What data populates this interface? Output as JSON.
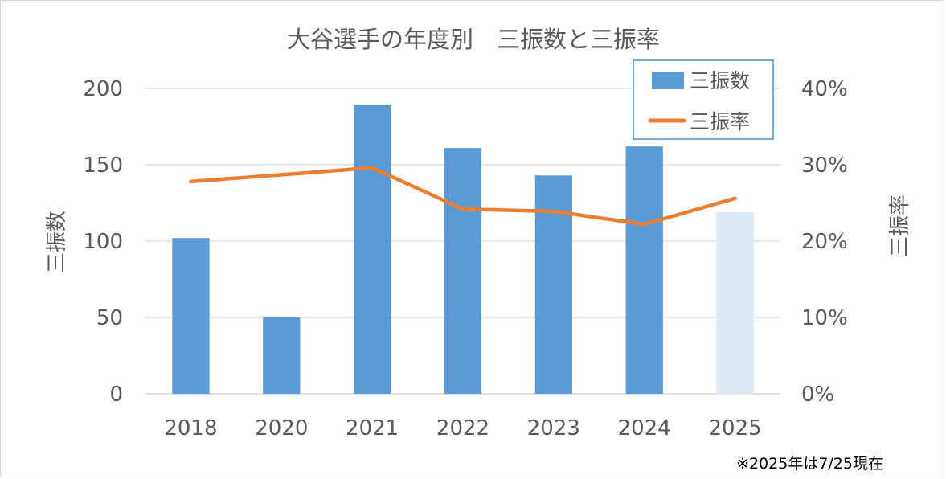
{
  "chart_data": {
    "type": "bar",
    "title": "大谷選手の年度別　三振数と三振率",
    "categories": [
      "2018",
      "2020",
      "2021",
      "2022",
      "2023",
      "2024",
      "2025"
    ],
    "series": [
      {
        "name": "三振数",
        "type": "bar",
        "axis": "left",
        "values": [
          102,
          50,
          189,
          161,
          143,
          162,
          119
        ],
        "color": "#5b9bd5",
        "highlight": {
          "category": "2025",
          "color": "#dde9f5"
        }
      },
      {
        "name": "三振率",
        "type": "line",
        "axis": "right",
        "values": [
          0.278,
          null,
          0.296,
          0.242,
          0.239,
          0.222,
          0.256
        ],
        "color": "#ed7d31"
      }
    ],
    "ylabel": "三振数",
    "y2label": "三振率",
    "ylim": [
      0,
      200
    ],
    "yticks": [
      0,
      50,
      100,
      150,
      200
    ],
    "y2lim": [
      0,
      0.4
    ],
    "y2ticks": [
      "0%",
      "10%",
      "20%",
      "30%",
      "40%"
    ],
    "grid": true,
    "legend_position": "top-right",
    "note": "※2025年は7/25現在"
  }
}
